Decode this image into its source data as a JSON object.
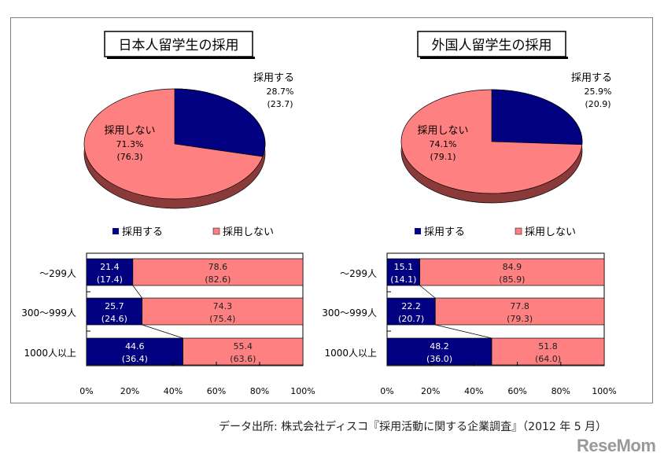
{
  "colors": {
    "adopt": "#000080",
    "not_adopt": "#FF8080",
    "pie_side": "#8B3A3A"
  },
  "chart_data": [
    {
      "type": "pie",
      "title": "日本人留学生の採用",
      "slices": [
        {
          "label": "採用する",
          "value": 28.7,
          "value_text": "28.7%",
          "prev_text": "(23.7)"
        },
        {
          "label": "採用しない",
          "value": 71.3,
          "value_text": "71.3%",
          "prev_text": "(76.3)"
        }
      ],
      "legend": [
        "採用する",
        "採用しない"
      ]
    },
    {
      "type": "bar",
      "orientation": "horizontal-stacked",
      "categories": [
        "〜299人",
        "300〜999人",
        "1000人以上"
      ],
      "series": [
        {
          "name": "採用する",
          "values": [
            21.4,
            25.7,
            44.6
          ],
          "prev_values": [
            "(17.4)",
            "(24.6)",
            "(36.4)"
          ]
        },
        {
          "name": "採用しない",
          "values": [
            78.6,
            74.3,
            55.4
          ],
          "prev_values": [
            "(82.6)",
            "(75.4)",
            "(63.6)"
          ]
        }
      ],
      "xlim": [
        0,
        100
      ],
      "xticks": [
        "0%",
        "20%",
        "40%",
        "60%",
        "80%",
        "100%"
      ]
    },
    {
      "type": "pie",
      "title": "外国人留学生の採用",
      "slices": [
        {
          "label": "採用する",
          "value": 25.9,
          "value_text": "25.9%",
          "prev_text": "(20.9)"
        },
        {
          "label": "採用しない",
          "value": 74.1,
          "value_text": "74.1%",
          "prev_text": "(79.1)"
        }
      ],
      "legend": [
        "採用する",
        "採用しない"
      ]
    },
    {
      "type": "bar",
      "orientation": "horizontal-stacked",
      "categories": [
        "〜299人",
        "300〜999人",
        "1000人以上"
      ],
      "series": [
        {
          "name": "採用する",
          "values": [
            15.1,
            22.2,
            48.2
          ],
          "prev_values": [
            "(14.1)",
            "(20.7)",
            "(36.0)"
          ]
        },
        {
          "name": "採用しない",
          "values": [
            84.9,
            77.8,
            51.8
          ],
          "prev_values": [
            "(85.9)",
            "(79.3)",
            "(64.0)"
          ]
        }
      ],
      "xlim": [
        0,
        100
      ],
      "xticks": [
        "0%",
        "20%",
        "40%",
        "60%",
        "80%",
        "100%"
      ]
    }
  ],
  "footer": {
    "source": "データ出所: 株式会社ディスコ『採用活動に関する企業調査』（2012 年 5 月）",
    "logo": "ReseMom"
  }
}
